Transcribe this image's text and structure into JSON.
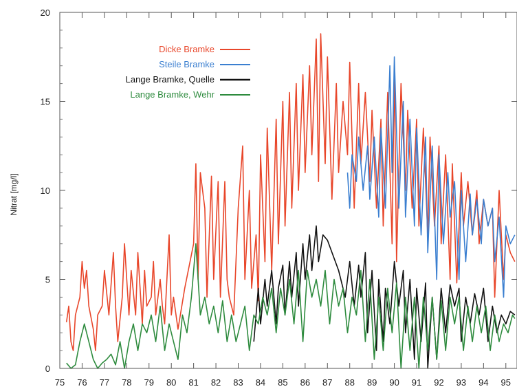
{
  "chart_data": {
    "type": "line",
    "title": "",
    "xlabel": "",
    "ylabel": "Nitrat [mg/l]",
    "xlim": [
      75,
      95.5
    ],
    "ylim": [
      0,
      20
    ],
    "x_ticks": [
      "75",
      "76",
      "77",
      "78",
      "79",
      "80",
      "81",
      "82",
      "83",
      "84",
      "85",
      "86",
      "87",
      "88",
      "89",
      "90",
      "91",
      "92",
      "93",
      "94",
      "95"
    ],
    "y_ticks": [
      "0",
      "5",
      "10",
      "15",
      "20"
    ],
    "grid": false,
    "legend_position": "top-left",
    "series": [
      {
        "name": "Dicke Bramke",
        "color": "#e8462a",
        "x": [
          75.3,
          75.4,
          75.5,
          75.6,
          75.7,
          75.9,
          76.0,
          76.1,
          76.2,
          76.3,
          76.5,
          76.6,
          76.7,
          76.9,
          77.0,
          77.2,
          77.4,
          77.5,
          77.6,
          77.8,
          77.9,
          78.1,
          78.2,
          78.4,
          78.5,
          78.7,
          78.8,
          78.9,
          79.1,
          79.2,
          79.3,
          79.5,
          79.6,
          79.7,
          79.9,
          80.0,
          80.1,
          80.3,
          80.6,
          81.0,
          81.1,
          81.2,
          81.3,
          81.5,
          81.6,
          81.8,
          81.9,
          82.1,
          82.2,
          82.4,
          82.5,
          82.6,
          82.8,
          83.0,
          83.2,
          83.3,
          83.5,
          83.6,
          83.8,
          83.9,
          84.0,
          84.2,
          84.3,
          84.5,
          84.7,
          84.8,
          85.0,
          85.1,
          85.3,
          85.4,
          85.6,
          85.7,
          85.9,
          86.0,
          86.2,
          86.3,
          86.5,
          86.6,
          86.7,
          86.9,
          87.0,
          87.2,
          87.4,
          87.5,
          87.7,
          87.9,
          88.0,
          88.2,
          88.4,
          88.5,
          88.7,
          88.9,
          89.0,
          89.2,
          89.4,
          89.5,
          89.7,
          89.9,
          90.0,
          90.1,
          90.3,
          90.5,
          90.6,
          90.8,
          91.0,
          91.1,
          91.3,
          91.5,
          91.6,
          91.8,
          92.0,
          92.1,
          92.3,
          92.5,
          92.6,
          92.8,
          93.0,
          93.1,
          93.3,
          93.5,
          93.7,
          93.8,
          94.0,
          94.2,
          94.4,
          94.5,
          94.7,
          94.9,
          95.0,
          95.2,
          95.4
        ],
        "values": [
          2.6,
          3.5,
          1.5,
          1.0,
          3.0,
          4.0,
          6.0,
          4.5,
          5.5,
          3.5,
          2.2,
          1.0,
          3.0,
          3.5,
          5.5,
          3.0,
          6.5,
          3.5,
          1.5,
          4.0,
          7.0,
          3.0,
          5.5,
          3.0,
          6.5,
          2.5,
          5.5,
          3.5,
          4.0,
          6.0,
          3.0,
          5.0,
          3.5,
          2.5,
          7.5,
          3.0,
          4.0,
          2.2,
          4.5,
          7.0,
          11.5,
          5.0,
          11.0,
          9.0,
          4.0,
          10.8,
          5.0,
          10.5,
          4.0,
          10.5,
          5.0,
          4.0,
          3.0,
          9.0,
          12.5,
          5.0,
          10.0,
          4.5,
          7.5,
          3.8,
          12.0,
          6.0,
          13.5,
          5.5,
          14.0,
          7.0,
          15.0,
          8.0,
          15.5,
          9.0,
          16.0,
          10.0,
          16.5,
          11.0,
          17.0,
          12.0,
          18.5,
          10.5,
          18.8,
          11.5,
          17.5,
          9.5,
          16.0,
          11.0,
          15.0,
          12.0,
          17.2,
          9.0,
          16.0,
          11.5,
          15.5,
          10.5,
          14.5,
          9.0,
          14.0,
          8.0,
          15.5,
          7.0,
          17.0,
          6.0,
          16.0,
          10.0,
          14.5,
          9.0,
          14.0,
          8.0,
          13.5,
          7.5,
          13.0,
          8.0,
          12.5,
          7.0,
          12.0,
          5.0,
          11.5,
          4.8,
          11.0,
          8.0,
          10.5,
          7.5,
          10.0,
          7.0,
          9.5,
          8.0,
          9.0,
          4.0,
          10.0,
          5.0,
          7.5,
          6.5,
          6.0
        ]
      },
      {
        "name": "Steile Bramke",
        "color": "#3b7fd0",
        "x": [
          87.9,
          88.0,
          88.1,
          88.3,
          88.4,
          88.6,
          88.8,
          88.9,
          89.1,
          89.3,
          89.4,
          89.6,
          89.8,
          89.9,
          90.0,
          90.2,
          90.4,
          90.5,
          90.7,
          90.9,
          91.0,
          91.2,
          91.4,
          91.5,
          91.7,
          91.9,
          92.0,
          92.2,
          92.4,
          92.5,
          92.7,
          92.9,
          93.0,
          93.2,
          93.4,
          93.5,
          93.7,
          93.9,
          94.0,
          94.2,
          94.4,
          94.5,
          94.7,
          94.9,
          95.0,
          95.2,
          95.4
        ],
        "values": [
          11.0,
          9.0,
          12.0,
          10.5,
          13.0,
          10.0,
          12.5,
          9.5,
          13.0,
          8.5,
          13.5,
          9.0,
          17.0,
          11.0,
          17.5,
          9.0,
          15.0,
          8.5,
          14.0,
          8.0,
          13.5,
          7.5,
          13.0,
          6.5,
          12.5,
          5.0,
          12.0,
          7.0,
          11.0,
          8.5,
          10.5,
          5.0,
          10.0,
          6.0,
          9.8,
          7.5,
          9.5,
          7.0,
          9.5,
          8.0,
          9.0,
          6.0,
          8.5,
          4.0,
          8.0,
          7.0,
          7.5
        ]
      },
      {
        "name": "Lange Bramke, Quelle",
        "color": "#111111",
        "x": [
          83.7,
          83.9,
          84.0,
          84.2,
          84.3,
          84.5,
          84.7,
          84.8,
          85.0,
          85.1,
          85.3,
          85.4,
          85.6,
          85.7,
          85.9,
          86.0,
          86.2,
          86.3,
          86.5,
          86.6,
          86.8,
          87.0,
          87.5,
          87.8,
          88.0,
          88.2,
          88.4,
          88.5,
          88.7,
          88.8,
          89.0,
          89.2,
          89.3,
          89.5,
          89.6,
          89.8,
          90.0,
          90.2,
          90.4,
          90.5,
          90.7,
          90.9,
          91.0,
          91.2,
          91.4,
          91.5,
          91.7,
          91.9,
          92.1,
          92.3,
          92.5,
          92.7,
          92.9,
          93.0,
          93.2,
          93.4,
          93.6,
          93.8,
          94.0,
          94.2,
          94.4,
          94.6,
          94.8,
          95.0,
          95.2,
          95.4
        ],
        "values": [
          1.5,
          4.5,
          2.5,
          5.0,
          3.5,
          5.5,
          2.5,
          4.5,
          5.8,
          3.0,
          6.0,
          4.0,
          6.5,
          3.5,
          7.0,
          5.0,
          7.5,
          5.5,
          8.0,
          6.0,
          7.5,
          7.2,
          5.5,
          4.0,
          6.0,
          3.5,
          5.8,
          4.0,
          6.5,
          2.0,
          5.5,
          1.0,
          5.0,
          1.5,
          4.5,
          2.5,
          6.0,
          3.5,
          5.5,
          2.0,
          5.0,
          0.5,
          4.5,
          1.5,
          4.8,
          0.0,
          4.0,
          0.5,
          4.5,
          2.0,
          4.7,
          3.5,
          4.5,
          1.5,
          4.0,
          2.5,
          4.2,
          3.0,
          4.5,
          1.5,
          3.5,
          2.0,
          3.0,
          2.5,
          3.2,
          3.0
        ]
      },
      {
        "name": "Lange Bramke, Wehr",
        "color": "#2e8b3e",
        "x": [
          75.3,
          75.5,
          75.7,
          75.9,
          76.1,
          76.3,
          76.5,
          76.7,
          76.9,
          77.1,
          77.3,
          77.5,
          77.7,
          77.9,
          78.1,
          78.3,
          78.5,
          78.7,
          78.9,
          79.1,
          79.3,
          79.5,
          79.7,
          79.9,
          80.1,
          80.3,
          80.5,
          80.7,
          80.9,
          81.1,
          81.3,
          81.5,
          81.7,
          81.9,
          82.1,
          82.3,
          82.5,
          82.7,
          82.9,
          83.1,
          83.3,
          83.5,
          83.7,
          83.9,
          84.1,
          84.3,
          84.5,
          84.7,
          84.9,
          85.1,
          85.3,
          85.5,
          85.7,
          85.9,
          86.1,
          86.3,
          86.5,
          86.7,
          86.9,
          87.1,
          87.3,
          87.5,
          87.7,
          87.9,
          88.1,
          88.3,
          88.5,
          88.7,
          88.9,
          89.1,
          89.3,
          89.5,
          89.7,
          89.9,
          90.1,
          90.3,
          90.5,
          90.7,
          90.9,
          91.1,
          91.3,
          91.5,
          91.7,
          91.9,
          92.1,
          92.3,
          92.5,
          92.7,
          92.9,
          93.1,
          93.3,
          93.5,
          93.7,
          93.9,
          94.1,
          94.3,
          94.5,
          94.7,
          94.9,
          95.1,
          95.3,
          95.4
        ],
        "values": [
          0.3,
          0.0,
          0.2,
          1.5,
          2.5,
          1.5,
          0.5,
          0.0,
          0.3,
          0.5,
          0.8,
          0.2,
          1.5,
          0.0,
          1.5,
          2.5,
          1.0,
          2.5,
          2.0,
          3.0,
          1.5,
          3.5,
          1.0,
          2.5,
          1.5,
          0.5,
          3.0,
          2.0,
          4.0,
          7.0,
          3.0,
          4.0,
          2.5,
          3.5,
          2.0,
          3.8,
          1.5,
          3.0,
          1.5,
          2.5,
          3.5,
          1.0,
          3.0,
          2.5,
          4.0,
          3.0,
          4.5,
          2.0,
          4.5,
          3.0,
          5.0,
          2.5,
          5.5,
          1.5,
          5.5,
          4.0,
          5.0,
          3.5,
          5.5,
          2.5,
          5.0,
          3.5,
          4.5,
          2.0,
          4.0,
          3.0,
          5.5,
          1.5,
          5.0,
          0.5,
          4.0,
          1.0,
          4.5,
          2.0,
          4.8,
          0.0,
          4.0,
          1.0,
          4.0,
          0.0,
          4.0,
          1.0,
          4.0,
          0.5,
          3.8,
          1.0,
          4.0,
          2.5,
          4.0,
          1.0,
          3.5,
          1.5,
          3.5,
          2.0,
          3.5,
          1.0,
          3.0,
          1.5,
          2.5,
          2.0,
          3.0,
          2.8
        ]
      }
    ]
  }
}
